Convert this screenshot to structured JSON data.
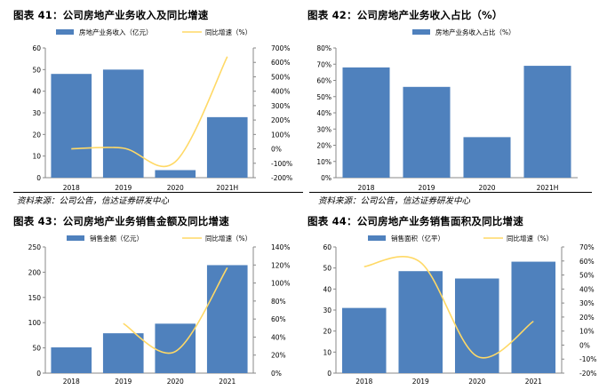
{
  "figures": [
    {
      "title": "图表 41：公司房地产业务收入及同比增速",
      "source": "资料来源：公司公告，信达证券研发中心"
    },
    {
      "title": "图表 42：公司房地产业务收入占比（%）",
      "source": "资料来源：公司公告，信达证券研发中心"
    },
    {
      "title": "图表 43：公司房地产业务销售金额及同比增速",
      "source": ""
    },
    {
      "title": "图表 44：公司房地产业务销售面积及同比增速",
      "source": ""
    }
  ],
  "colors": {
    "bar": "#4f81bd",
    "line": "#ffd966"
  },
  "chart_data": [
    {
      "type": "bar",
      "categories": [
        "2018",
        "2019",
        "2020",
        "2021H"
      ],
      "series": [
        {
          "name": "房地产业务收入（亿元）",
          "type": "bar",
          "axis": "left",
          "values": [
            48,
            50,
            3.5,
            28
          ]
        },
        {
          "name": "同比增速（%）",
          "type": "line",
          "axis": "right",
          "values": [
            0,
            5,
            -90,
            640
          ]
        }
      ],
      "yleft": {
        "min": 0,
        "max": 60,
        "ticks": [
          0,
          10,
          20,
          30,
          40,
          50,
          60
        ],
        "suffix": ""
      },
      "yright": {
        "min": -200,
        "max": 700,
        "ticks": [
          -200,
          -100,
          0,
          100,
          200,
          300,
          400,
          500,
          600,
          700
        ],
        "suffix": "%"
      },
      "legend": "top"
    },
    {
      "type": "bar",
      "categories": [
        "2018",
        "2019",
        "2020",
        "2021H"
      ],
      "series": [
        {
          "name": "房地产业务收入占比（%）",
          "type": "bar",
          "axis": "left",
          "values": [
            68,
            56,
            25,
            69
          ]
        }
      ],
      "yleft": {
        "min": 0,
        "max": 80,
        "ticks": [
          0,
          10,
          20,
          30,
          40,
          50,
          60,
          70,
          80
        ],
        "suffix": "%"
      },
      "legend": "top"
    },
    {
      "type": "bar",
      "categories": [
        "2018",
        "2019",
        "2020",
        "2021"
      ],
      "series": [
        {
          "name": "销售金额（亿元）",
          "type": "bar",
          "axis": "left",
          "values": [
            51,
            79,
            98,
            214
          ]
        },
        {
          "name": "同比增速（%）",
          "type": "line",
          "axis": "right",
          "values": [
            null,
            55,
            24,
            117
          ]
        }
      ],
      "yleft": {
        "min": 0,
        "max": 250,
        "ticks": [
          0,
          50,
          100,
          150,
          200,
          250
        ],
        "suffix": ""
      },
      "yright": {
        "min": 0,
        "max": 140,
        "ticks": [
          0,
          20,
          40,
          60,
          80,
          100,
          120,
          140
        ],
        "suffix": "%"
      },
      "legend": "top"
    },
    {
      "type": "bar",
      "categories": [
        "2018",
        "2019",
        "2020",
        "2021"
      ],
      "series": [
        {
          "name": "销售面积（亿平）",
          "type": "bar",
          "axis": "left",
          "values": [
            31,
            48.5,
            45,
            53
          ]
        },
        {
          "name": "同比增速（%）",
          "type": "line",
          "axis": "right",
          "values": [
            56,
            59,
            -8,
            17
          ]
        }
      ],
      "yleft": {
        "min": 0,
        "max": 60,
        "ticks": [
          0,
          10,
          20,
          30,
          40,
          50,
          60
        ],
        "suffix": ""
      },
      "yright": {
        "min": -20,
        "max": 70,
        "ticks": [
          -20,
          -10,
          0,
          10,
          20,
          30,
          40,
          50,
          60,
          70
        ],
        "suffix": "%"
      },
      "legend": "top"
    }
  ]
}
